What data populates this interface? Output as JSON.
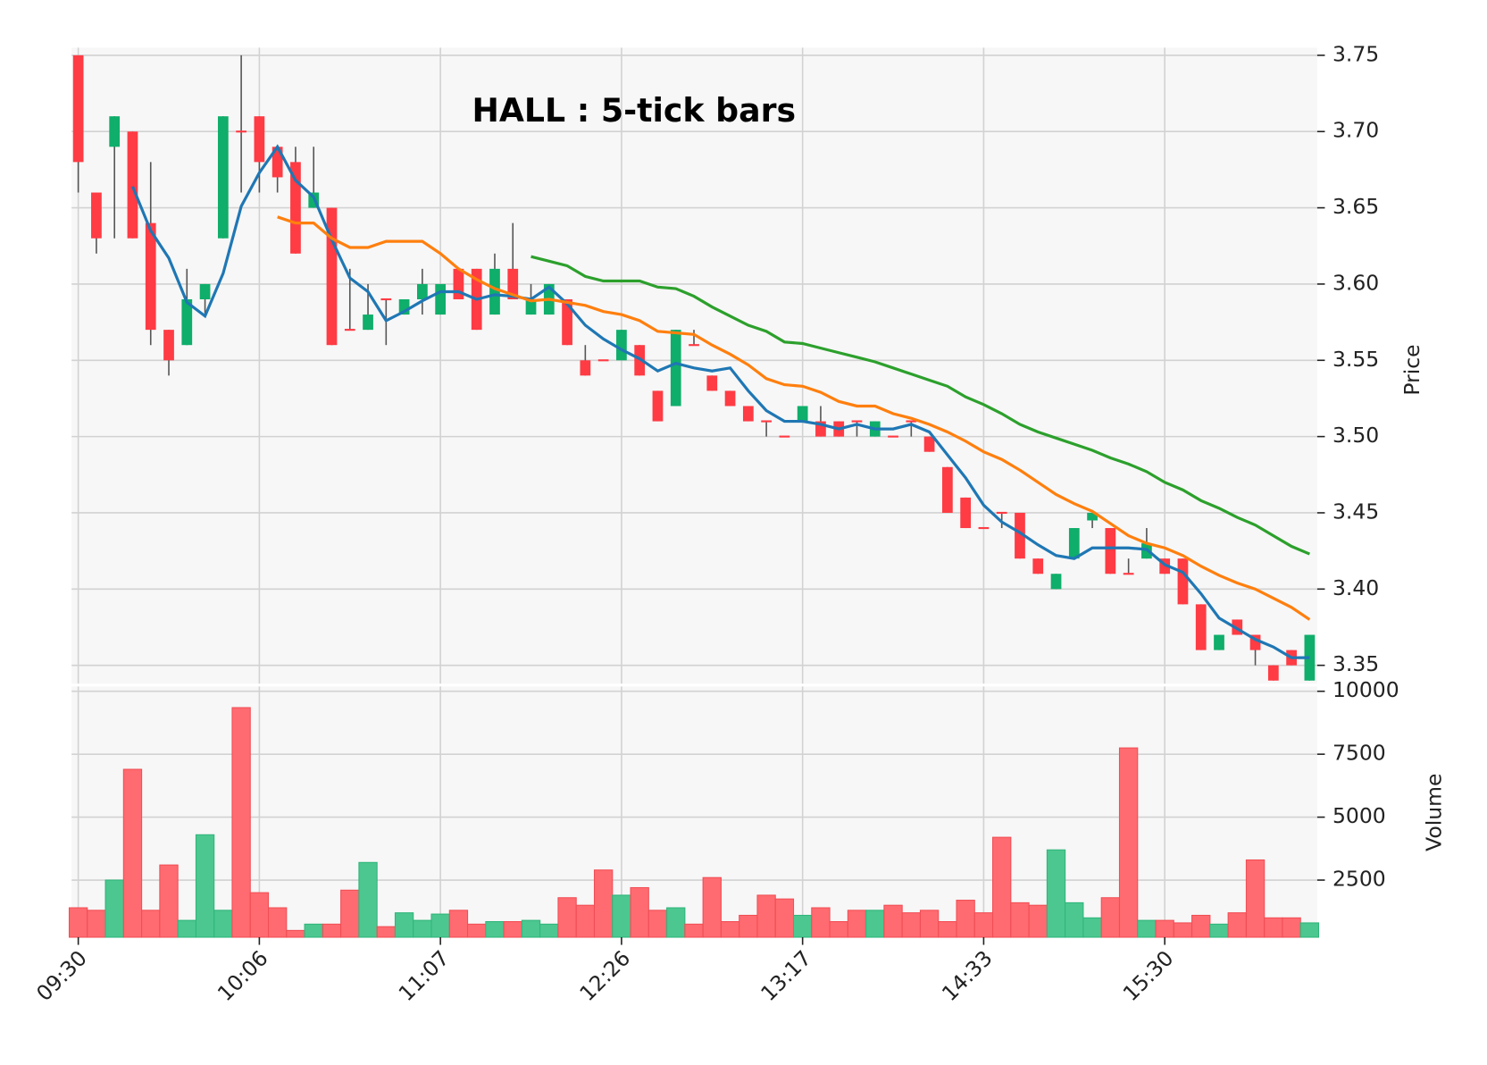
{
  "chart_data": [
    {
      "type": "candlestick",
      "title": "HALL : 5-tick bars",
      "ylabel": "Price",
      "categories": [
        "09:30",
        null,
        null,
        null,
        null,
        null,
        null,
        null,
        null,
        null,
        "10:06",
        null,
        null,
        null,
        null,
        null,
        null,
        null,
        null,
        null,
        "11:07",
        null,
        null,
        null,
        null,
        null,
        null,
        null,
        null,
        null,
        "12:26",
        null,
        null,
        null,
        null,
        null,
        null,
        null,
        null,
        null,
        "13:17",
        null,
        null,
        null,
        null,
        null,
        null,
        null,
        null,
        null,
        "14:33",
        null,
        null,
        null,
        null,
        null,
        null,
        null,
        null,
        null,
        "15:30",
        null,
        null,
        null,
        null,
        null,
        null,
        null,
        null
      ],
      "open": [
        3.75,
        3.66,
        3.69,
        3.7,
        3.64,
        3.57,
        3.56,
        3.59,
        3.63,
        3.7,
        3.71,
        3.69,
        3.68,
        3.65,
        3.65,
        3.57,
        3.57,
        3.59,
        3.58,
        3.59,
        3.58,
        3.61,
        3.61,
        3.58,
        3.61,
        3.58,
        3.58,
        3.59,
        3.55,
        3.55,
        3.55,
        3.56,
        3.53,
        3.52,
        3.56,
        3.54,
        3.53,
        3.52,
        3.51,
        3.5,
        3.51,
        3.51,
        3.51,
        3.51,
        3.5,
        3.5,
        3.51,
        3.5,
        3.48,
        3.46,
        3.44,
        3.45,
        3.45,
        3.42,
        3.4,
        3.42,
        3.445,
        3.44,
        3.41,
        3.42,
        3.42,
        3.42,
        3.39,
        3.36,
        3.38,
        3.37,
        3.35,
        3.36,
        3.34
      ],
      "high": [
        3.75,
        3.66,
        3.71,
        3.7,
        3.68,
        3.57,
        3.61,
        3.6,
        3.71,
        3.75,
        3.71,
        3.69,
        3.69,
        3.69,
        3.65,
        3.61,
        3.6,
        3.59,
        3.59,
        3.61,
        3.6,
        3.61,
        3.61,
        3.62,
        3.64,
        3.6,
        3.6,
        3.59,
        3.56,
        3.55,
        3.57,
        3.56,
        3.53,
        3.57,
        3.57,
        3.54,
        3.53,
        3.52,
        3.51,
        3.5,
        3.52,
        3.52,
        3.51,
        3.51,
        3.51,
        3.5,
        3.51,
        3.5,
        3.48,
        3.46,
        3.44,
        3.45,
        3.45,
        3.42,
        3.41,
        3.44,
        3.45,
        3.44,
        3.42,
        3.44,
        3.42,
        3.42,
        3.39,
        3.37,
        3.38,
        3.37,
        3.35,
        3.36,
        3.37
      ],
      "low": [
        3.66,
        3.62,
        3.63,
        3.63,
        3.56,
        3.54,
        3.56,
        3.58,
        3.63,
        3.66,
        3.66,
        3.66,
        3.62,
        3.65,
        3.56,
        3.57,
        3.57,
        3.56,
        3.58,
        3.58,
        3.58,
        3.59,
        3.57,
        3.58,
        3.59,
        3.58,
        3.58,
        3.56,
        3.54,
        3.55,
        3.55,
        3.54,
        3.51,
        3.52,
        3.56,
        3.53,
        3.52,
        3.51,
        3.5,
        3.5,
        3.51,
        3.5,
        3.5,
        3.5,
        3.5,
        3.5,
        3.5,
        3.49,
        3.45,
        3.44,
        3.44,
        3.44,
        3.42,
        3.41,
        3.4,
        3.42,
        3.44,
        3.41,
        3.41,
        3.42,
        3.41,
        3.39,
        3.36,
        3.36,
        3.37,
        3.35,
        3.34,
        3.35,
        3.34
      ],
      "close": [
        3.68,
        3.63,
        3.71,
        3.63,
        3.57,
        3.55,
        3.59,
        3.6,
        3.71,
        3.7,
        3.68,
        3.67,
        3.62,
        3.66,
        3.56,
        3.57,
        3.58,
        3.59,
        3.59,
        3.6,
        3.6,
        3.59,
        3.57,
        3.61,
        3.59,
        3.59,
        3.6,
        3.56,
        3.54,
        3.55,
        3.57,
        3.54,
        3.51,
        3.57,
        3.56,
        3.53,
        3.52,
        3.51,
        3.51,
        3.5,
        3.52,
        3.5,
        3.5,
        3.51,
        3.51,
        3.5,
        3.51,
        3.49,
        3.45,
        3.44,
        3.44,
        3.45,
        3.42,
        3.41,
        3.41,
        3.44,
        3.45,
        3.41,
        3.41,
        3.43,
        3.41,
        3.39,
        3.36,
        3.37,
        3.37,
        3.36,
        3.34,
        3.35,
        3.37
      ],
      "up_color": "#0fae6a",
      "down_color": "#ff3b44",
      "wick_color": "#555555",
      "series": [
        {
          "color": "#1f77b4",
          "values": [
            null,
            null,
            null,
            3.664,
            3.635,
            3.617,
            3.588,
            3.579,
            3.607,
            3.651,
            3.673,
            3.69,
            3.668,
            3.657,
            3.629,
            3.604,
            3.595,
            3.576,
            3.582,
            3.589,
            3.595,
            3.595,
            3.59,
            3.593,
            3.592,
            3.59,
            3.598,
            3.587,
            3.573,
            3.564,
            3.557,
            3.551,
            3.543,
            3.548,
            3.545,
            3.543,
            3.545,
            3.53,
            3.517,
            3.51,
            3.51,
            3.508,
            3.505,
            3.508,
            3.505,
            3.505,
            3.508,
            3.503,
            3.488,
            3.473,
            3.455,
            3.444,
            3.437,
            3.429,
            3.422,
            3.42,
            3.427,
            3.427,
            3.427,
            3.426,
            3.416,
            3.411,
            3.397,
            3.381,
            3.374,
            3.367,
            3.362,
            3.355,
            3.355
          ]
        },
        {
          "color": "#ff7f0e",
          "values": [
            null,
            null,
            null,
            null,
            null,
            null,
            null,
            null,
            null,
            null,
            null,
            3.644,
            3.64,
            3.64,
            3.63,
            3.624,
            3.624,
            3.628,
            3.628,
            3.628,
            3.62,
            3.61,
            3.603,
            3.597,
            3.593,
            3.589,
            3.59,
            3.588,
            3.586,
            3.582,
            3.58,
            3.576,
            3.569,
            3.568,
            3.567,
            3.56,
            3.554,
            3.547,
            3.538,
            3.534,
            3.533,
            3.529,
            3.523,
            3.52,
            3.52,
            3.515,
            3.512,
            3.508,
            3.503,
            3.497,
            3.49,
            3.485,
            3.478,
            3.47,
            3.462,
            3.456,
            3.451,
            3.443,
            3.435,
            3.43,
            3.427,
            3.422,
            3.415,
            3.409,
            3.404,
            3.4,
            3.394,
            3.388,
            3.38
          ]
        },
        {
          "color": "#2ca02c",
          "values": [
            null,
            null,
            null,
            null,
            null,
            null,
            null,
            null,
            null,
            null,
            null,
            null,
            null,
            null,
            null,
            null,
            null,
            null,
            null,
            null,
            null,
            null,
            null,
            null,
            null,
            3.618,
            3.615,
            3.612,
            3.605,
            3.602,
            3.602,
            3.602,
            3.598,
            3.597,
            3.592,
            3.585,
            3.579,
            3.573,
            3.569,
            3.562,
            3.561,
            3.558,
            3.555,
            3.552,
            3.549,
            3.545,
            3.541,
            3.537,
            3.533,
            3.526,
            3.521,
            3.515,
            3.508,
            3.503,
            3.499,
            3.495,
            3.491,
            3.486,
            3.482,
            3.477,
            3.47,
            3.465,
            3.458,
            3.453,
            3.447,
            3.442,
            3.435,
            3.428,
            3.423
          ]
        }
      ],
      "ylim": [
        3.338,
        3.755
      ],
      "yticks": [
        3.35,
        {
          "value": 3.4,
          "label": "3.40"
        },
        3.45,
        {
          "value": 3.5,
          "label": "3.50"
        },
        3.55,
        {
          "value": 3.6,
          "label": "3.60"
        },
        3.65,
        {
          "value": 3.7,
          "label": "3.70"
        },
        3.75
      ],
      "grid": true
    },
    {
      "type": "bar",
      "ylabel": "Volume",
      "values": [
        1400,
        1300,
        2500,
        6900,
        1300,
        3100,
        900,
        4300,
        1300,
        9350,
        2000,
        1400,
        500,
        750,
        750,
        2100,
        3200,
        650,
        1200,
        900,
        1150,
        1300,
        750,
        850,
        850,
        900,
        750,
        1800,
        1500,
        2900,
        1900,
        2200,
        1300,
        1400,
        750,
        2600,
        850,
        1100,
        1900,
        1750,
        1100,
        1400,
        850,
        1300,
        1300,
        1500,
        1200,
        1300,
        850,
        1700,
        1200,
        4200,
        1600,
        1500,
        3700,
        1600,
        1000,
        1800,
        7750,
        900,
        900,
        800,
        1100,
        750,
        1200,
        3300,
        1000,
        1000,
        800
      ],
      "up_color": "#4cc790",
      "down_color": "#ff6b70",
      "ylim": [
        230,
        10190
      ],
      "yticks": [
        2500,
        5000,
        7500,
        10000
      ],
      "grid": true
    }
  ]
}
